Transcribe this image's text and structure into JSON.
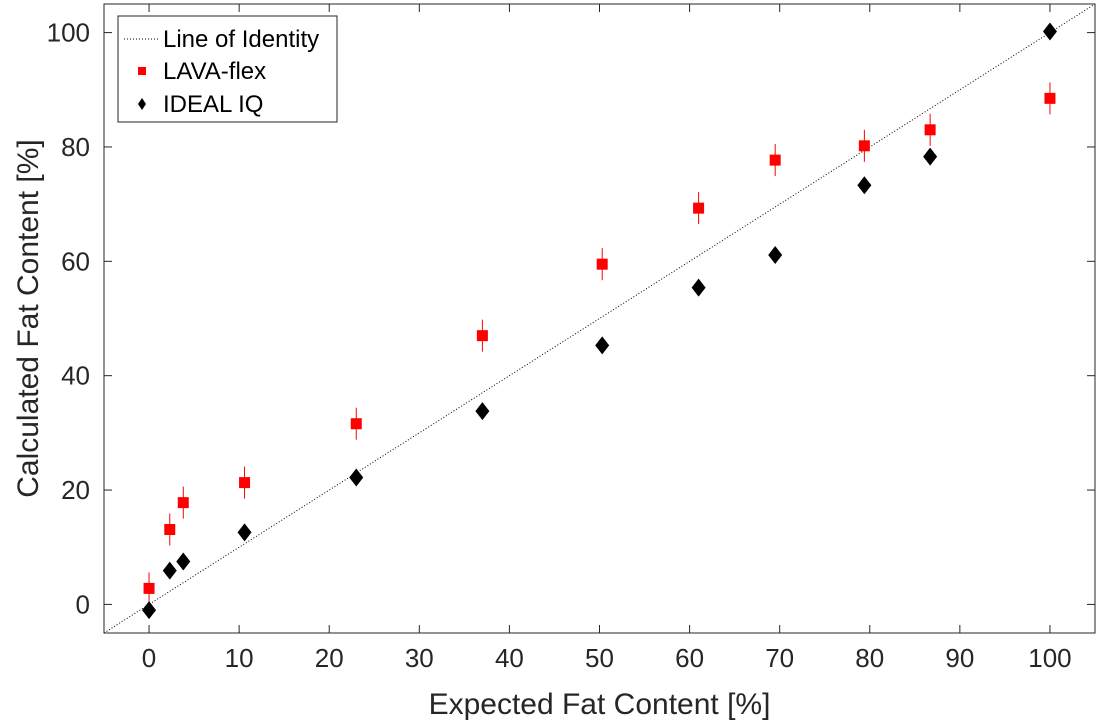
{
  "chart_data": {
    "type": "scatter",
    "title": "",
    "xlabel": "Expected Fat Content [%]",
    "ylabel": "Calculated Fat Content [%]",
    "xlim": [
      -5,
      105
    ],
    "ylim": [
      -5,
      105
    ],
    "xticks": [
      0,
      10,
      20,
      30,
      40,
      50,
      60,
      70,
      80,
      90,
      100
    ],
    "yticks": [
      0,
      20,
      40,
      60,
      80,
      100
    ],
    "grid": false,
    "legend_position": "top-left",
    "identity_line": {
      "name": "Line of Identity",
      "color": "#000000",
      "style": "dotted"
    },
    "series": [
      {
        "name": "LAVA-flex",
        "color": "#ff0000",
        "marker": "square",
        "x": [
          0,
          2.3,
          3.8,
          10.6,
          23,
          37,
          50.3,
          61,
          69.5,
          79.4,
          86.7,
          100
        ],
        "y": [
          2.8,
          13.1,
          17.8,
          21.3,
          31.6,
          47,
          59.5,
          69.3,
          77.7,
          80.2,
          83,
          88.5
        ],
        "error": [
          2.8,
          2.8,
          2.8,
          2.8,
          2.8,
          2.8,
          2.8,
          2.8,
          2.8,
          2.8,
          2.8,
          2.8
        ]
      },
      {
        "name": "IDEAL IQ",
        "color": "#000000",
        "marker": "diamond",
        "x": [
          0,
          2.3,
          3.8,
          10.6,
          23,
          37,
          50.3,
          61,
          69.5,
          79.4,
          86.7,
          100
        ],
        "y": [
          -1,
          5.9,
          7.5,
          12.6,
          22.2,
          33.8,
          45.3,
          55.4,
          61.1,
          73.3,
          78.3,
          100.2
        ],
        "error": [
          0.8,
          0.8,
          0.8,
          0.8,
          0.8,
          0.8,
          0.8,
          0.8,
          0.8,
          0.8,
          0.8,
          0.8
        ]
      }
    ]
  }
}
